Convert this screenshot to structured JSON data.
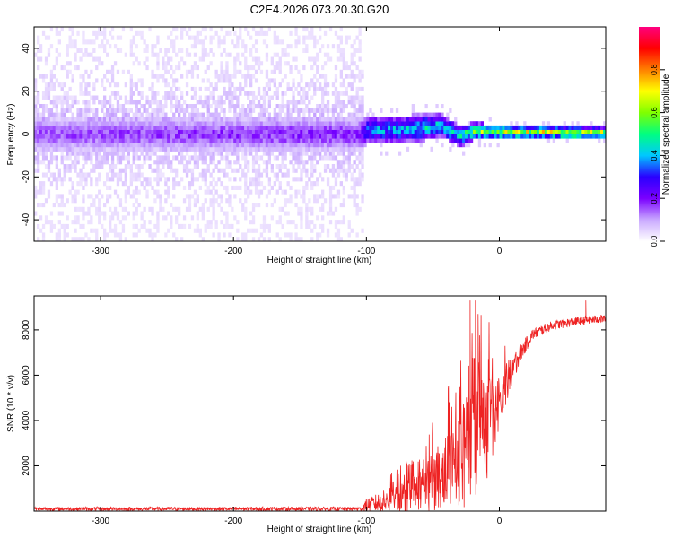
{
  "title": "C2E4.2026.073.20.30.G20",
  "chart_data": [
    {
      "type": "heatmap",
      "xlabel": "Height of straight line (km)",
      "ylabel": "Frequency (Hz)",
      "xlim": [
        -350,
        80
      ],
      "ylim": [
        -50,
        50
      ],
      "x_ticks": [
        -300,
        -200,
        -100,
        0
      ],
      "y_ticks": [
        -40,
        -20,
        0,
        20,
        40
      ],
      "grid": false,
      "colorbar": {
        "label": "Normalized spectral amplitude",
        "range": [
          0,
          1
        ],
        "ticks": [
          "0.0",
          "0.2",
          "0.4",
          "0.6",
          "0.8"
        ],
        "colors": [
          "#ffffff",
          "#c9a8ff",
          "#7a00ff",
          "#2a00ff",
          "#00c8ff",
          "#00ff80",
          "#80ff00",
          "#ffff00",
          "#ff8000",
          "#ff0000",
          "#ff0080"
        ]
      },
      "ridge": [
        {
          "x": -350,
          "f": 0.0,
          "width": 5.0,
          "amp": 0.15
        },
        {
          "x": -105,
          "f": 0.0,
          "width": 5.0,
          "amp": 0.18
        },
        {
          "x": -100,
          "f": 2.5,
          "width": 4.0,
          "amp": 0.35
        },
        {
          "x": -80,
          "f": 2.0,
          "width": 4.0,
          "amp": 0.38
        },
        {
          "x": -60,
          "f": 3.0,
          "width": 4.0,
          "amp": 0.42
        },
        {
          "x": -45,
          "f": 4.0,
          "width": 3.5,
          "amp": 0.4
        },
        {
          "x": -30,
          "f": -1.0,
          "width": 3.0,
          "amp": 0.42
        },
        {
          "x": -20,
          "f": 1.5,
          "width": 2.5,
          "amp": 0.55
        },
        {
          "x": 0,
          "f": 1.0,
          "width": 2.0,
          "amp": 0.62
        },
        {
          "x": 20,
          "f": 1.0,
          "width": 1.8,
          "amp": 0.65
        },
        {
          "x": 80,
          "f": 0.5,
          "width": 1.8,
          "amp": 0.62
        }
      ],
      "noise_extent": {
        "x_max": -103,
        "f_max": 48
      }
    },
    {
      "type": "line",
      "xlabel": "Height of straight line (km)",
      "ylabel": "SNR (10 * v/v)",
      "xlim": [
        -350,
        80
      ],
      "ylim": [
        0,
        9500
      ],
      "x_ticks": [
        -300,
        -200,
        -100,
        0
      ],
      "y_ticks": [
        2000,
        4000,
        6000,
        8000
      ],
      "grid": false,
      "series": [
        {
          "color": "#ee2222",
          "envelope": [
            {
              "x": -350,
              "mean": 100,
              "spread": 80
            },
            {
              "x": -105,
              "mean": 100,
              "spread": 90
            },
            {
              "x": -100,
              "mean": 250,
              "spread": 300
            },
            {
              "x": -80,
              "mean": 500,
              "spread": 600
            },
            {
              "x": -60,
              "mean": 900,
              "spread": 900
            },
            {
              "x": -45,
              "mean": 1500,
              "spread": 1500
            },
            {
              "x": -35,
              "mean": 2200,
              "spread": 1800
            },
            {
              "x": -25,
              "mean": 2500,
              "spread": 2500
            },
            {
              "x": -18,
              "mean": 3500,
              "spread": 3000
            },
            {
              "x": -10,
              "mean": 3500,
              "spread": 2500
            },
            {
              "x": -3,
              "mean": 4500,
              "spread": 1500
            },
            {
              "x": 5,
              "mean": 5600,
              "spread": 900
            },
            {
              "x": 15,
              "mean": 6900,
              "spread": 400
            },
            {
              "x": 25,
              "mean": 7800,
              "spread": 250
            },
            {
              "x": 40,
              "mean": 8200,
              "spread": 200
            },
            {
              "x": 60,
              "mean": 8400,
              "spread": 200
            },
            {
              "x": 80,
              "mean": 8500,
              "spread": 180
            }
          ],
          "peaks": [
            {
              "x": -22,
              "y": 9300
            },
            {
              "x": -18,
              "y": 9300
            },
            {
              "x": -16,
              "y": 8700
            },
            {
              "x": 65,
              "y": 9300
            }
          ]
        }
      ]
    }
  ]
}
